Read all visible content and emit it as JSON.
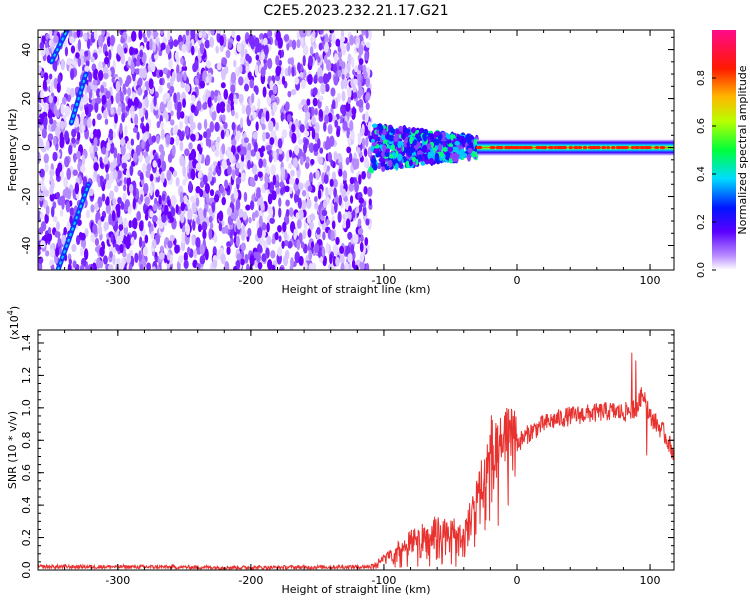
{
  "title": "C2E5.2023.232.21.17.G21",
  "chart_data": [
    {
      "type": "heatmap",
      "xlabel": "Height of straight line (km)",
      "ylabel": "Frequency (Hz)",
      "xlim": [
        -360,
        118
      ],
      "ylim": [
        -50,
        48
      ],
      "xticks": [
        -300,
        -200,
        -100,
        0,
        100
      ],
      "yticks": [
        -40,
        -20,
        0,
        20,
        40
      ],
      "grid": false,
      "features": {
        "noise_field": {
          "x": [
            -360,
            -110
          ],
          "y": [
            -50,
            48
          ],
          "amplitude": 0.05
        },
        "noisy_transition": {
          "x": [
            -110,
            -30
          ],
          "y": [
            -10,
            8
          ],
          "amplitude": 0.25
        },
        "carrier_line": {
          "x": [
            -30,
            118
          ],
          "y": 0,
          "amplitude": 0.9
        },
        "streak_upper": {
          "from": [
            -350,
            35
          ],
          "to": [
            -338,
            48
          ]
        },
        "streak_mid": {
          "from": [
            -335,
            10
          ],
          "to": [
            -324,
            30
          ]
        },
        "streak_lower": {
          "from": [
            -345,
            -50
          ],
          "to": [
            -322,
            -15
          ]
        }
      },
      "colorbar": {
        "label": "Normalized spectral amplitude",
        "range": [
          0.0,
          1.0
        ],
        "ticks": [
          0.0,
          0.2,
          0.4,
          0.6,
          0.8
        ]
      }
    },
    {
      "type": "line",
      "xlabel": "Height of straight line (km)",
      "ylabel": "SNR (10 * v/v)",
      "multiplier_label": "(x10",
      "multiplier_exp": "4",
      "multiplier_close": ")",
      "xlim": [
        -360,
        118
      ],
      "ylim": [
        0,
        1.48
      ],
      "xticks": [
        -300,
        -200,
        -100,
        0,
        100
      ],
      "yticks": [
        0.0,
        0.2,
        0.4,
        0.6,
        0.8,
        1.0,
        1.2,
        1.4
      ],
      "line_color": "#e8322f",
      "grid": false,
      "series": [
        {
          "x": [
            -360,
            -300,
            -200,
            -110,
            -100,
            -90,
            -80,
            -70,
            -60,
            -50,
            -40,
            -30,
            -25,
            -20,
            -15,
            -10,
            0,
            10,
            20,
            30,
            40,
            50,
            60,
            70,
            80,
            90,
            95,
            100,
            105,
            110,
            118
          ],
          "values": [
            0.02,
            0.02,
            0.015,
            0.02,
            0.05,
            0.09,
            0.13,
            0.16,
            0.18,
            0.17,
            0.16,
            0.3,
            0.45,
            0.65,
            0.55,
            0.7,
            0.78,
            0.85,
            0.9,
            0.93,
            0.95,
            0.96,
            0.97,
            0.98,
            0.97,
            1.0,
            1.1,
            0.95,
            0.9,
            0.85,
            0.72
          ]
        }
      ]
    }
  ]
}
